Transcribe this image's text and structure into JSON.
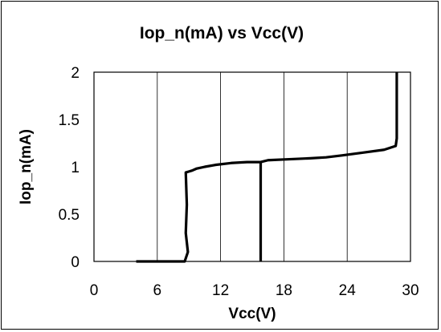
{
  "chart_data": {
    "type": "line",
    "title": "Iop_n(mA) vs Vcc(V)",
    "xlabel": "Vcc(V)",
    "ylabel": "Iop_n(mA)",
    "xlim": [
      0,
      30
    ],
    "ylim": [
      0,
      2
    ],
    "xticks": [
      0,
      6,
      12,
      18,
      24,
      30
    ],
    "yticks": [
      0,
      0.5,
      1,
      1.5,
      2
    ],
    "xtick_labels": [
      "0",
      "6",
      "12",
      "18",
      "24",
      "30"
    ],
    "ytick_labels": [
      "0",
      "0.5",
      "1",
      "1.5",
      "2"
    ],
    "grid": "vertical",
    "legend": "none",
    "colors": {
      "series": "#000000",
      "grid": "#000000",
      "axes": "#000000"
    },
    "series": [
      {
        "values": [
          [
            4.0,
            0.0
          ],
          [
            8.6,
            0.0
          ],
          [
            8.6,
            0.0
          ],
          [
            8.9,
            0.1
          ],
          [
            8.7,
            0.3
          ],
          [
            8.8,
            0.6
          ],
          [
            8.7,
            0.94
          ],
          [
            9.0,
            0.95
          ],
          [
            9.3,
            0.96
          ],
          [
            9.7,
            0.98
          ],
          [
            10.5,
            1.0
          ],
          [
            11.5,
            1.02
          ],
          [
            13.0,
            1.04
          ],
          [
            14.5,
            1.05
          ],
          [
            15.8,
            1.05
          ],
          [
            16.5,
            1.07
          ],
          [
            18.5,
            1.08
          ],
          [
            20.5,
            1.09
          ],
          [
            22.0,
            1.1
          ],
          [
            23.5,
            1.12
          ],
          [
            25.5,
            1.15
          ],
          [
            27.5,
            1.18
          ],
          [
            28.6,
            1.22
          ],
          [
            28.7,
            1.3
          ],
          [
            28.7,
            1.6
          ],
          [
            28.7,
            2.0
          ]
        ]
      },
      {
        "values": [
          [
            15.8,
            0.0
          ],
          [
            15.8,
            1.05
          ]
        ]
      }
    ]
  }
}
